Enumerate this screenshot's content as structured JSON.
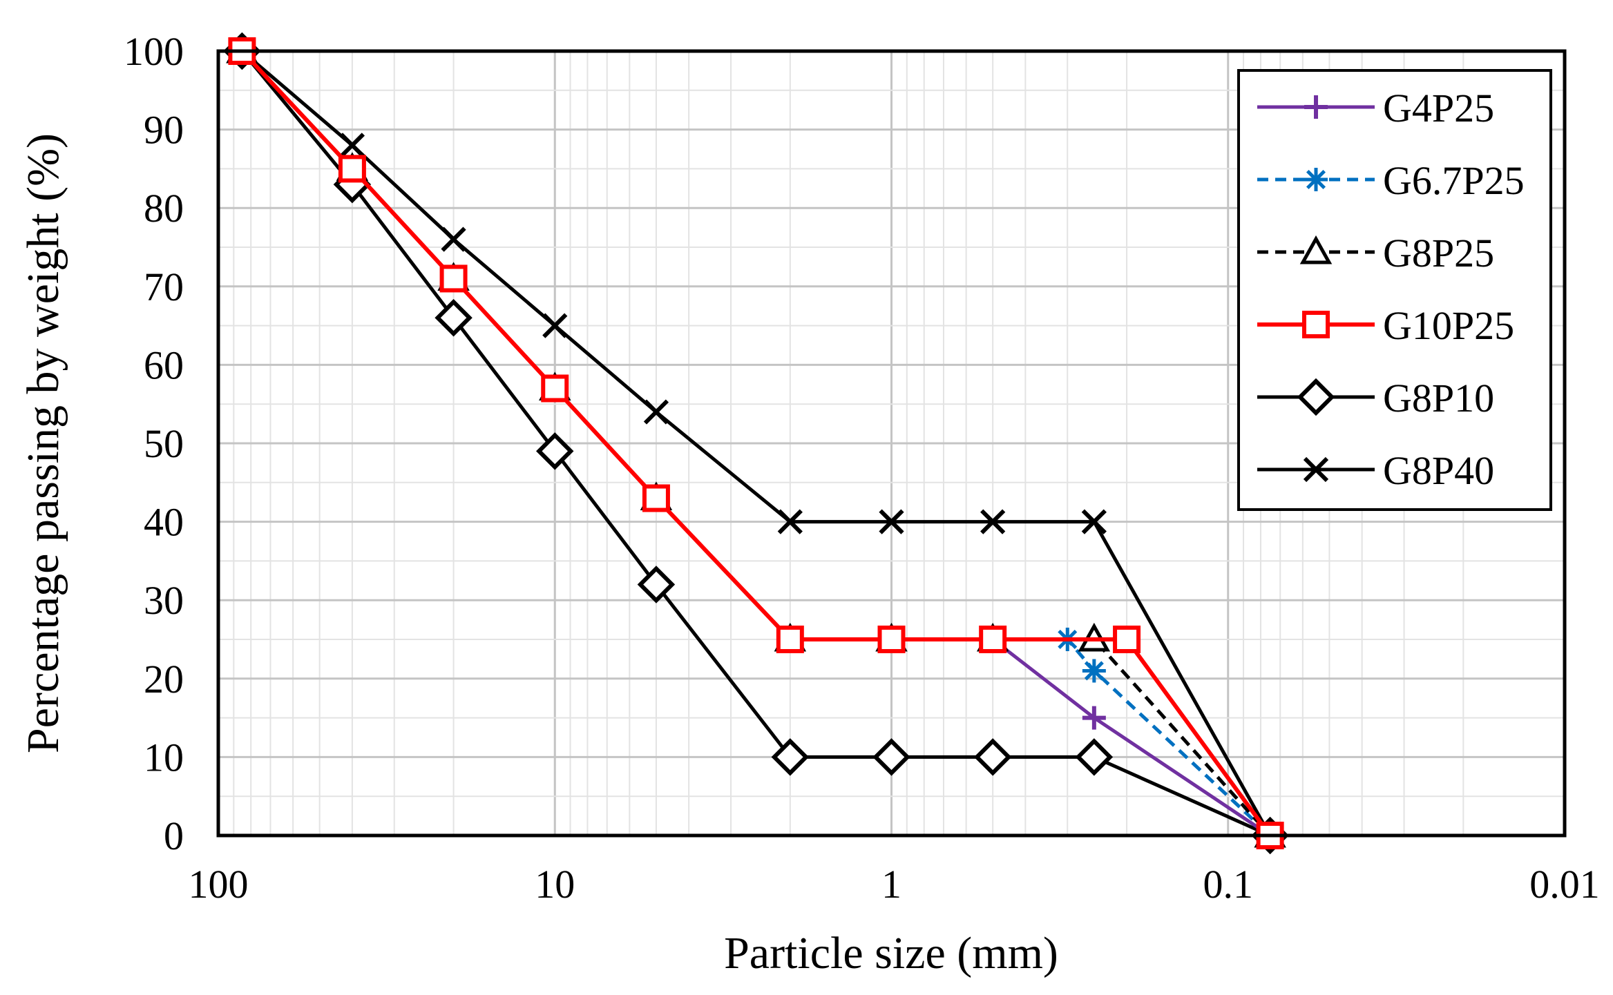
{
  "chart_data": {
    "type": "line",
    "title": "",
    "xlabel": "Particle size (mm)",
    "ylabel": "Percentage passing by weight (%)",
    "x_scale": "log",
    "x_reversed": true,
    "xlim": [
      100,
      0.01
    ],
    "ylim": [
      0,
      100
    ],
    "x_ticks": [
      100,
      10,
      1,
      0.1,
      0.01
    ],
    "x_tick_labels": [
      "100",
      "10",
      "1",
      "0.1",
      "0.01"
    ],
    "y_ticks": [
      0,
      10,
      20,
      30,
      40,
      50,
      60,
      70,
      80,
      90,
      100
    ],
    "y_tick_labels": [
      "0",
      "10",
      "20",
      "30",
      "40",
      "50",
      "60",
      "70",
      "80",
      "90",
      "100"
    ],
    "grid": true,
    "legend_position": "top-right",
    "series": [
      {
        "name": "G4P25",
        "color": "#7030A0",
        "dash": "solid",
        "marker": "plus",
        "x": [
          85,
          40,
          20,
          10,
          5,
          2,
          1,
          0.5,
          0.25,
          0.075
        ],
        "y": [
          100,
          85,
          71,
          57,
          43,
          25,
          25,
          25,
          15,
          0
        ]
      },
      {
        "name": "G6.7P25",
        "color": "#0070C0",
        "dash": "dashed",
        "marker": "asterisk",
        "x": [
          85,
          40,
          20,
          10,
          5,
          2,
          1,
          0.5,
          0.3,
          0.25,
          0.075
        ],
        "y": [
          100,
          85,
          71,
          57,
          43,
          25,
          25,
          25,
          25,
          21,
          0
        ]
      },
      {
        "name": "G8P25",
        "color": "#000000",
        "dash": "dashed",
        "marker": "triangle",
        "x": [
          85,
          40,
          20,
          10,
          5,
          2,
          1,
          0.5,
          0.25,
          0.075
        ],
        "y": [
          100,
          85,
          71,
          57,
          43,
          25,
          25,
          25,
          25,
          0
        ]
      },
      {
        "name": "G10P25",
        "color": "#FF0000",
        "dash": "solid",
        "marker": "square",
        "x": [
          85,
          40,
          20,
          10,
          5,
          2,
          1,
          0.5,
          0.2,
          0.075
        ],
        "y": [
          100,
          85,
          71,
          57,
          43,
          25,
          25,
          25,
          25,
          0
        ]
      },
      {
        "name": "G8P10",
        "color": "#000000",
        "dash": "solid",
        "marker": "diamond",
        "x": [
          85,
          40,
          20,
          10,
          5,
          2,
          1,
          0.5,
          0.25,
          0.075
        ],
        "y": [
          100,
          83,
          66,
          49,
          32,
          10,
          10,
          10,
          10,
          0
        ]
      },
      {
        "name": "G8P40",
        "color": "#000000",
        "dash": "solid",
        "marker": "cross",
        "x": [
          85,
          40,
          20,
          10,
          5,
          2,
          1,
          0.5,
          0.25,
          0.075
        ],
        "y": [
          100,
          88,
          76,
          65,
          54,
          40,
          40,
          40,
          40,
          0
        ]
      }
    ]
  }
}
